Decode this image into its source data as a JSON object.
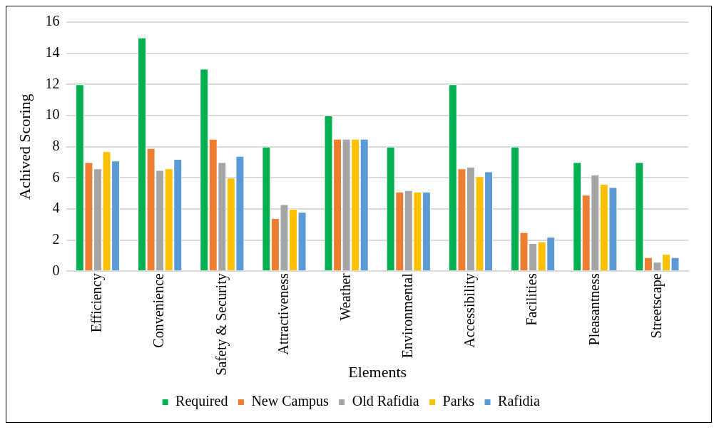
{
  "chart_data": {
    "type": "bar",
    "xlabel": "Elements",
    "ylabel": "Achived Scoring",
    "categories": [
      "Efficiency",
      "Convenience",
      "Safety & Security",
      "Attractiveness",
      "Weather",
      "Environmental",
      "Accessibility",
      "Facilities",
      "Pleasantness",
      "Streetscape"
    ],
    "series": [
      {
        "name": "Required",
        "color": "#00b050",
        "values": [
          12,
          15,
          13,
          8,
          10,
          8,
          12,
          8,
          7,
          7
        ]
      },
      {
        "name": "New Campus",
        "color": "#ed7d31",
        "values": [
          7.0,
          7.9,
          8.5,
          3.4,
          8.5,
          5.1,
          6.6,
          2.5,
          4.9,
          0.9
        ]
      },
      {
        "name": "Old Rafidia",
        "color": "#a5a5a5",
        "values": [
          6.6,
          6.5,
          7.0,
          4.3,
          8.5,
          5.2,
          6.7,
          1.8,
          6.2,
          0.6
        ]
      },
      {
        "name": "Parks",
        "color": "#ffc000",
        "values": [
          7.7,
          6.6,
          6.0,
          4.0,
          8.5,
          5.1,
          6.1,
          1.9,
          5.6,
          1.1
        ]
      },
      {
        "name": "Rafidia",
        "color": "#5b9bd5",
        "values": [
          7.1,
          7.2,
          7.4,
          3.8,
          8.5,
          5.1,
          6.4,
          2.2,
          5.4,
          0.9
        ]
      }
    ],
    "ylim": [
      0,
      16
    ],
    "yticks": [
      0,
      2,
      4,
      6,
      8,
      10,
      12,
      14,
      16
    ],
    "grid": "y",
    "legend": "bottom"
  }
}
